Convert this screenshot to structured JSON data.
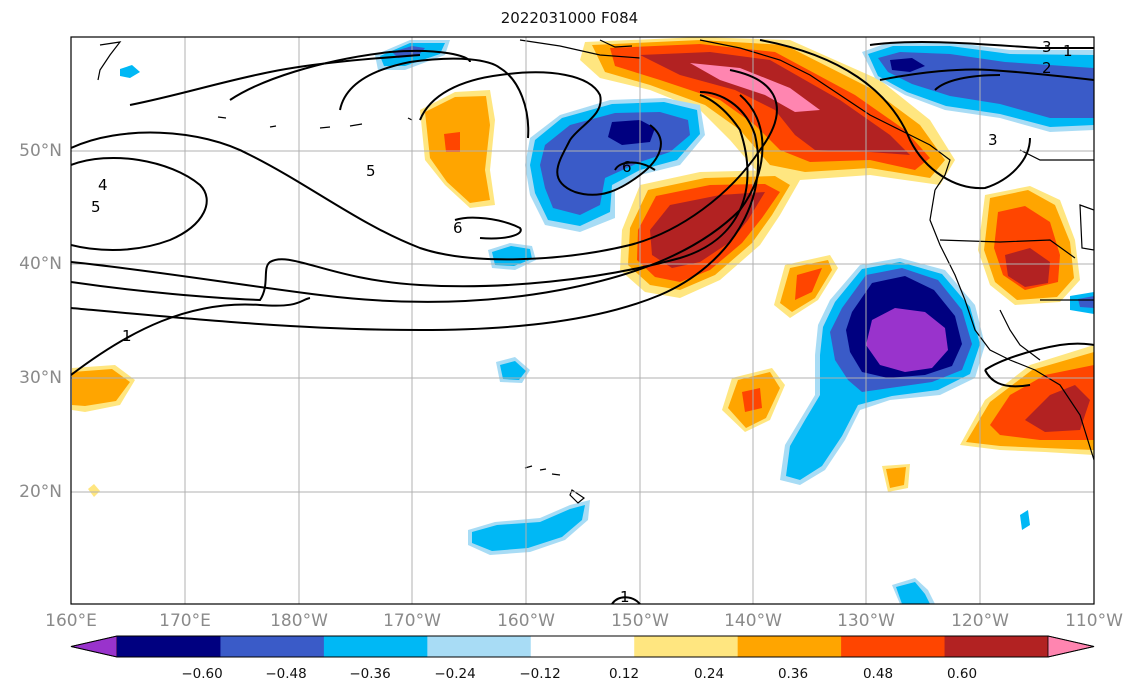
{
  "title": "2022031000 F084",
  "lon_labels": [
    "160°E",
    "170°E",
    "180°W",
    "170°W",
    "160°W",
    "150°W",
    "140°W",
    "130°W",
    "120°W",
    "110°W"
  ],
  "lat_labels": [
    "50°N",
    "40°N",
    "30°N",
    "20°N"
  ],
  "contour_labels": [
    "1",
    "4",
    "5",
    "5",
    "6",
    "6",
    "1",
    "1",
    "3",
    "3",
    "2"
  ],
  "colorbar": {
    "tick_labels": [
      "−0.60",
      "−0.48",
      "−0.36",
      "−0.24",
      "−0.12",
      "0.12",
      "0.24",
      "0.36",
      "0.48",
      "0.60"
    ],
    "colors": [
      "#9933cc",
      "#000080",
      "#3a5bc8",
      "#00b8f5",
      "#a8dcf5",
      "#ffffff",
      "#ffe680",
      "#ffa500",
      "#ff4500",
      "#b22222",
      "#ff85b0"
    ]
  },
  "fill_colors": {
    "neg_light": "#a8dcf5",
    "neg_cyan": "#00b8f5",
    "neg_blue": "#3a5bc8",
    "neg_navy": "#000080",
    "neg_purple": "#9933cc",
    "pos_yellow": "#ffe680",
    "pos_orange": "#ffa500",
    "pos_red": "#ff4500",
    "pos_dark": "#b22222",
    "pos_pink": "#ff85b0"
  }
}
